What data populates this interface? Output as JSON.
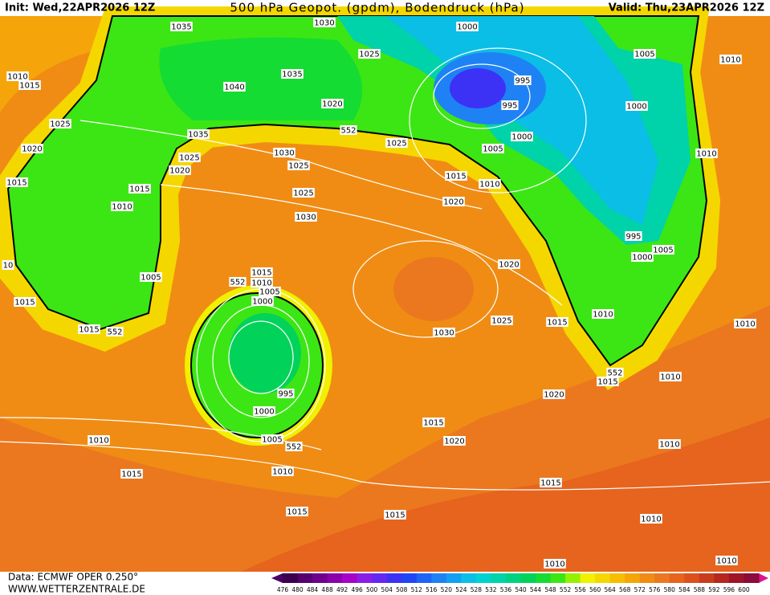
{
  "header": {
    "init": "Init: Wed,22APR2026 12Z",
    "title": "500 hPa Geopot. (gpdm), Bodendruck (hPa)",
    "valid": "Valid: Thu,23APR2026 12Z"
  },
  "footer": {
    "data": "Data: ECMWF OPER 0.250°",
    "site": "WWW.WETTERZENTRALE.DE"
  },
  "scale": {
    "labels": [
      476,
      480,
      484,
      488,
      492,
      496,
      500,
      504,
      508,
      512,
      516,
      520,
      524,
      528,
      532,
      536,
      540,
      544,
      548,
      552,
      556,
      560,
      564,
      568,
      572,
      576,
      580,
      584,
      588,
      592,
      596,
      600
    ],
    "colors": [
      "#3c0050",
      "#55006e",
      "#70008c",
      "#8c00aa",
      "#a800c8",
      "#8a1ee6",
      "#6428f0",
      "#3c32f5",
      "#1e46f5",
      "#1e64f5",
      "#1e82f5",
      "#14a0f0",
      "#0abee6",
      "#00d2d2",
      "#00d2aa",
      "#00d282",
      "#00d25a",
      "#14dc32",
      "#3ce614",
      "#96f000",
      "#f0f000",
      "#f5d700",
      "#f5be00",
      "#f5a50a",
      "#f08c14",
      "#eb781e",
      "#e6641e",
      "#dc501e",
      "#c83c1e",
      "#b4281e",
      "#a01428",
      "#8c0a3c"
    ],
    "end_left": "#4b0064",
    "end_right": "#dc148c"
  },
  "isobar_labels": [
    "1035",
    "1030",
    "1000",
    "1025",
    "1005",
    "1010",
    "1010",
    "1015",
    "1040",
    "1035",
    "995",
    "1020",
    "995",
    "1000",
    "1025",
    "1035",
    "552",
    "1025",
    "1000",
    "1005",
    "1020",
    "1030",
    "1025",
    "1025",
    "1010",
    "1020",
    "1015",
    "1015",
    "1010",
    "1015",
    "1025",
    "1020",
    "1010",
    "1030",
    "995",
    "1005",
    "1000",
    "1020",
    "1015",
    "552",
    "1010",
    "10",
    "1005",
    "1005",
    "1000",
    "1015",
    "1010",
    "1025",
    "1015",
    "1010",
    "1015",
    "552",
    "1030",
    "552",
    "1015",
    "1010",
    "995",
    "1020",
    "1000",
    "1015",
    "1005",
    "552",
    "1020",
    "1010",
    "1010",
    "1010",
    "1015",
    "1015",
    "1015",
    "1015",
    "1010",
    "1010",
    "1010"
  ]
}
